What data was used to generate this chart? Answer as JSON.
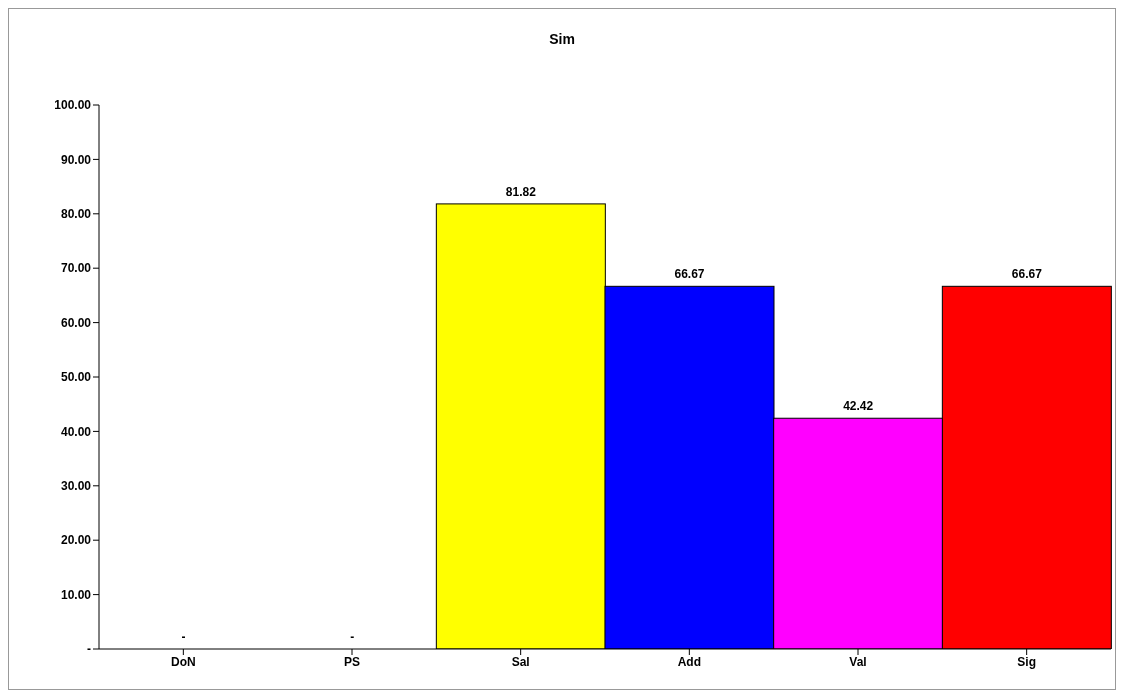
{
  "chart_data": {
    "type": "bar",
    "title": "Sim",
    "categories": [
      "DoN",
      "PS",
      "Sal",
      "Add",
      "Val",
      "Sig"
    ],
    "values": [
      0,
      0,
      81.82,
      66.67,
      42.42,
      66.67
    ],
    "colors": [
      "#ffffff",
      "#ffffff",
      "#ffff00",
      "#0000ff",
      "#ff00ff",
      "#ff0000"
    ],
    "value_labels": [
      "-",
      "-",
      "81.82",
      "66.67",
      "42.42",
      "66.67"
    ],
    "ylim": [
      0,
      100
    ],
    "yticks": [
      {
        "value": 0,
        "label": "-"
      },
      {
        "value": 10,
        "label": "10.00"
      },
      {
        "value": 20,
        "label": "20.00"
      },
      {
        "value": 30,
        "label": "30.00"
      },
      {
        "value": 40,
        "label": "40.00"
      },
      {
        "value": 50,
        "label": "50.00"
      },
      {
        "value": 60,
        "label": "60.00"
      },
      {
        "value": 70,
        "label": "70.00"
      },
      {
        "value": 80,
        "label": "80.00"
      },
      {
        "value": 90,
        "label": "90.00"
      },
      {
        "value": 100,
        "label": "100.00"
      }
    ],
    "grid": false,
    "legend": false
  }
}
